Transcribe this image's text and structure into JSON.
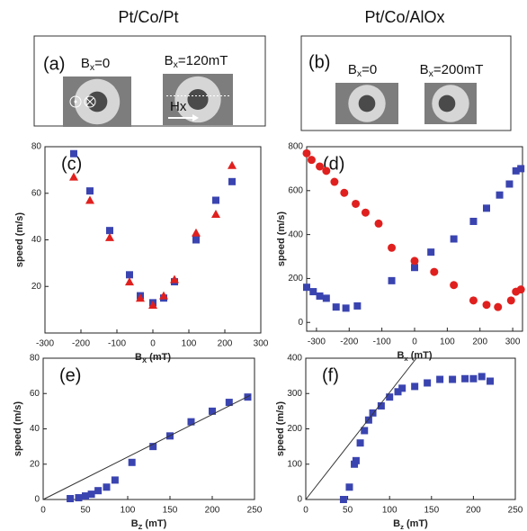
{
  "figure": {
    "columns": [
      {
        "title": "Pt/Co/Pt",
        "panel": "(a)",
        "images": [
          {
            "caption": {
              "symbol": "B",
              "subscript": "x",
              "rest": "=0"
            }
          },
          {
            "caption": {
              "symbol": "B",
              "subscript": "x",
              "rest": "=120mT"
            },
            "arrow": "Hx"
          }
        ]
      },
      {
        "title": "Pt/Co/AlOx",
        "panel": "(b)",
        "images": [
          {
            "caption": {
              "symbol": "B",
              "subscript": "x",
              "rest": "=0"
            }
          },
          {
            "caption": {
              "symbol": "B",
              "subscript": "x",
              "rest": "=200mT"
            }
          }
        ]
      }
    ]
  },
  "chart_data": [
    {
      "type": "scatter",
      "label": "(c)",
      "ylabel": "speed (m/s)",
      "xlabel": {
        "symbol": "B",
        "subscript": "X",
        "unit": " (mT)"
      },
      "xlim": [
        -300,
        300
      ],
      "xticks": [
        -300,
        -200,
        -100,
        0,
        100,
        200,
        300
      ],
      "ylim": [
        0,
        80
      ],
      "yticks": [
        20,
        40,
        60,
        80
      ],
      "series": [
        {
          "color": "#3a44b0",
          "marker": "square",
          "x": [
            -220,
            -175,
            -120,
            -65,
            -35,
            0,
            30,
            60,
            120,
            175,
            220
          ],
          "values": [
            77,
            61,
            44,
            25,
            16,
            13,
            15,
            22,
            40,
            57,
            65
          ]
        },
        {
          "color": "#e0201e",
          "marker": "triangle",
          "x": [
            -220,
            -175,
            -120,
            -65,
            -35,
            0,
            30,
            60,
            120,
            175,
            220
          ],
          "values": [
            67,
            57,
            41,
            22,
            15,
            12,
            16,
            23,
            43,
            51,
            72
          ]
        }
      ]
    },
    {
      "type": "scatter",
      "label": "(d)",
      "ylabel": "speed (m/s)",
      "xlabel": {
        "symbol": "B",
        "subscript": "x",
        "unit": " (mT)"
      },
      "xlim": [
        -330,
        330
      ],
      "xticks": [
        -300,
        -200,
        -100,
        0,
        100,
        200,
        300
      ],
      "ylim": [
        -40,
        800
      ],
      "yticks": [
        0,
        200,
        400,
        600,
        800
      ],
      "series": [
        {
          "color": "#3a44b0",
          "marker": "square",
          "x": [
            -330,
            -310,
            -290,
            -270,
            -240,
            -210,
            -175,
            -70,
            0,
            50,
            120,
            180,
            220,
            260,
            290,
            310,
            325
          ],
          "values": [
            160,
            140,
            120,
            110,
            70,
            65,
            75,
            190,
            250,
            320,
            380,
            460,
            520,
            580,
            630,
            690,
            700
          ]
        },
        {
          "color": "#e0201e",
          "marker": "circle",
          "x": [
            -330,
            -315,
            -290,
            -270,
            -245,
            -215,
            -180,
            -150,
            -110,
            -70,
            0,
            60,
            120,
            180,
            220,
            255,
            295,
            310,
            325
          ],
          "values": [
            770,
            740,
            710,
            690,
            640,
            590,
            540,
            500,
            450,
            340,
            280,
            230,
            170,
            100,
            80,
            70,
            100,
            140,
            150
          ]
        }
      ]
    },
    {
      "type": "scatter",
      "label": "(e)",
      "ylabel": "speed (m/s)",
      "xlabel": {
        "symbol": "B",
        "subscript": "Z",
        "unit": " (mT)"
      },
      "xlim": [
        0,
        250
      ],
      "xticks": [
        0,
        50,
        100,
        150,
        200,
        250
      ],
      "ylim": [
        0,
        80
      ],
      "yticks": [
        0,
        20,
        40,
        60,
        80
      ],
      "series": [
        {
          "color": "#3a44b0",
          "marker": "square",
          "x": [
            32,
            42,
            50,
            57,
            65,
            75,
            85,
            105,
            130,
            150,
            175,
            200,
            220,
            242
          ],
          "values": [
            0.5,
            1,
            2,
            3,
            5,
            7,
            11,
            21,
            30,
            36,
            44,
            50,
            55,
            58
          ]
        },
        {
          "color": "#333333",
          "marker": "line",
          "x": [
            0,
            245
          ],
          "values": [
            0,
            59
          ]
        }
      ]
    },
    {
      "type": "scatter",
      "label": "(f)",
      "ylabel": "speed (m/s)",
      "xlabel": {
        "symbol": "B",
        "subscript": "z",
        "unit": " (mT)"
      },
      "xlim": [
        0,
        250
      ],
      "xticks": [
        0,
        50,
        100,
        150,
        200,
        250
      ],
      "ylim": [
        0,
        400
      ],
      "yticks": [
        0,
        100,
        200,
        300,
        400
      ],
      "series": [
        {
          "color": "#3a44b0",
          "marker": "square",
          "x": [
            45,
            52,
            58,
            60,
            65,
            70,
            75,
            80,
            90,
            100,
            110,
            115,
            130,
            145,
            160,
            175,
            190,
            200,
            210,
            220
          ],
          "values": [
            0,
            35,
            100,
            110,
            160,
            195,
            225,
            245,
            265,
            290,
            305,
            315,
            320,
            330,
            340,
            340,
            342,
            342,
            348,
            335
          ]
        },
        {
          "color": "#333333",
          "marker": "line",
          "x": [
            0,
            132
          ],
          "values": [
            0,
            400
          ]
        }
      ]
    }
  ]
}
